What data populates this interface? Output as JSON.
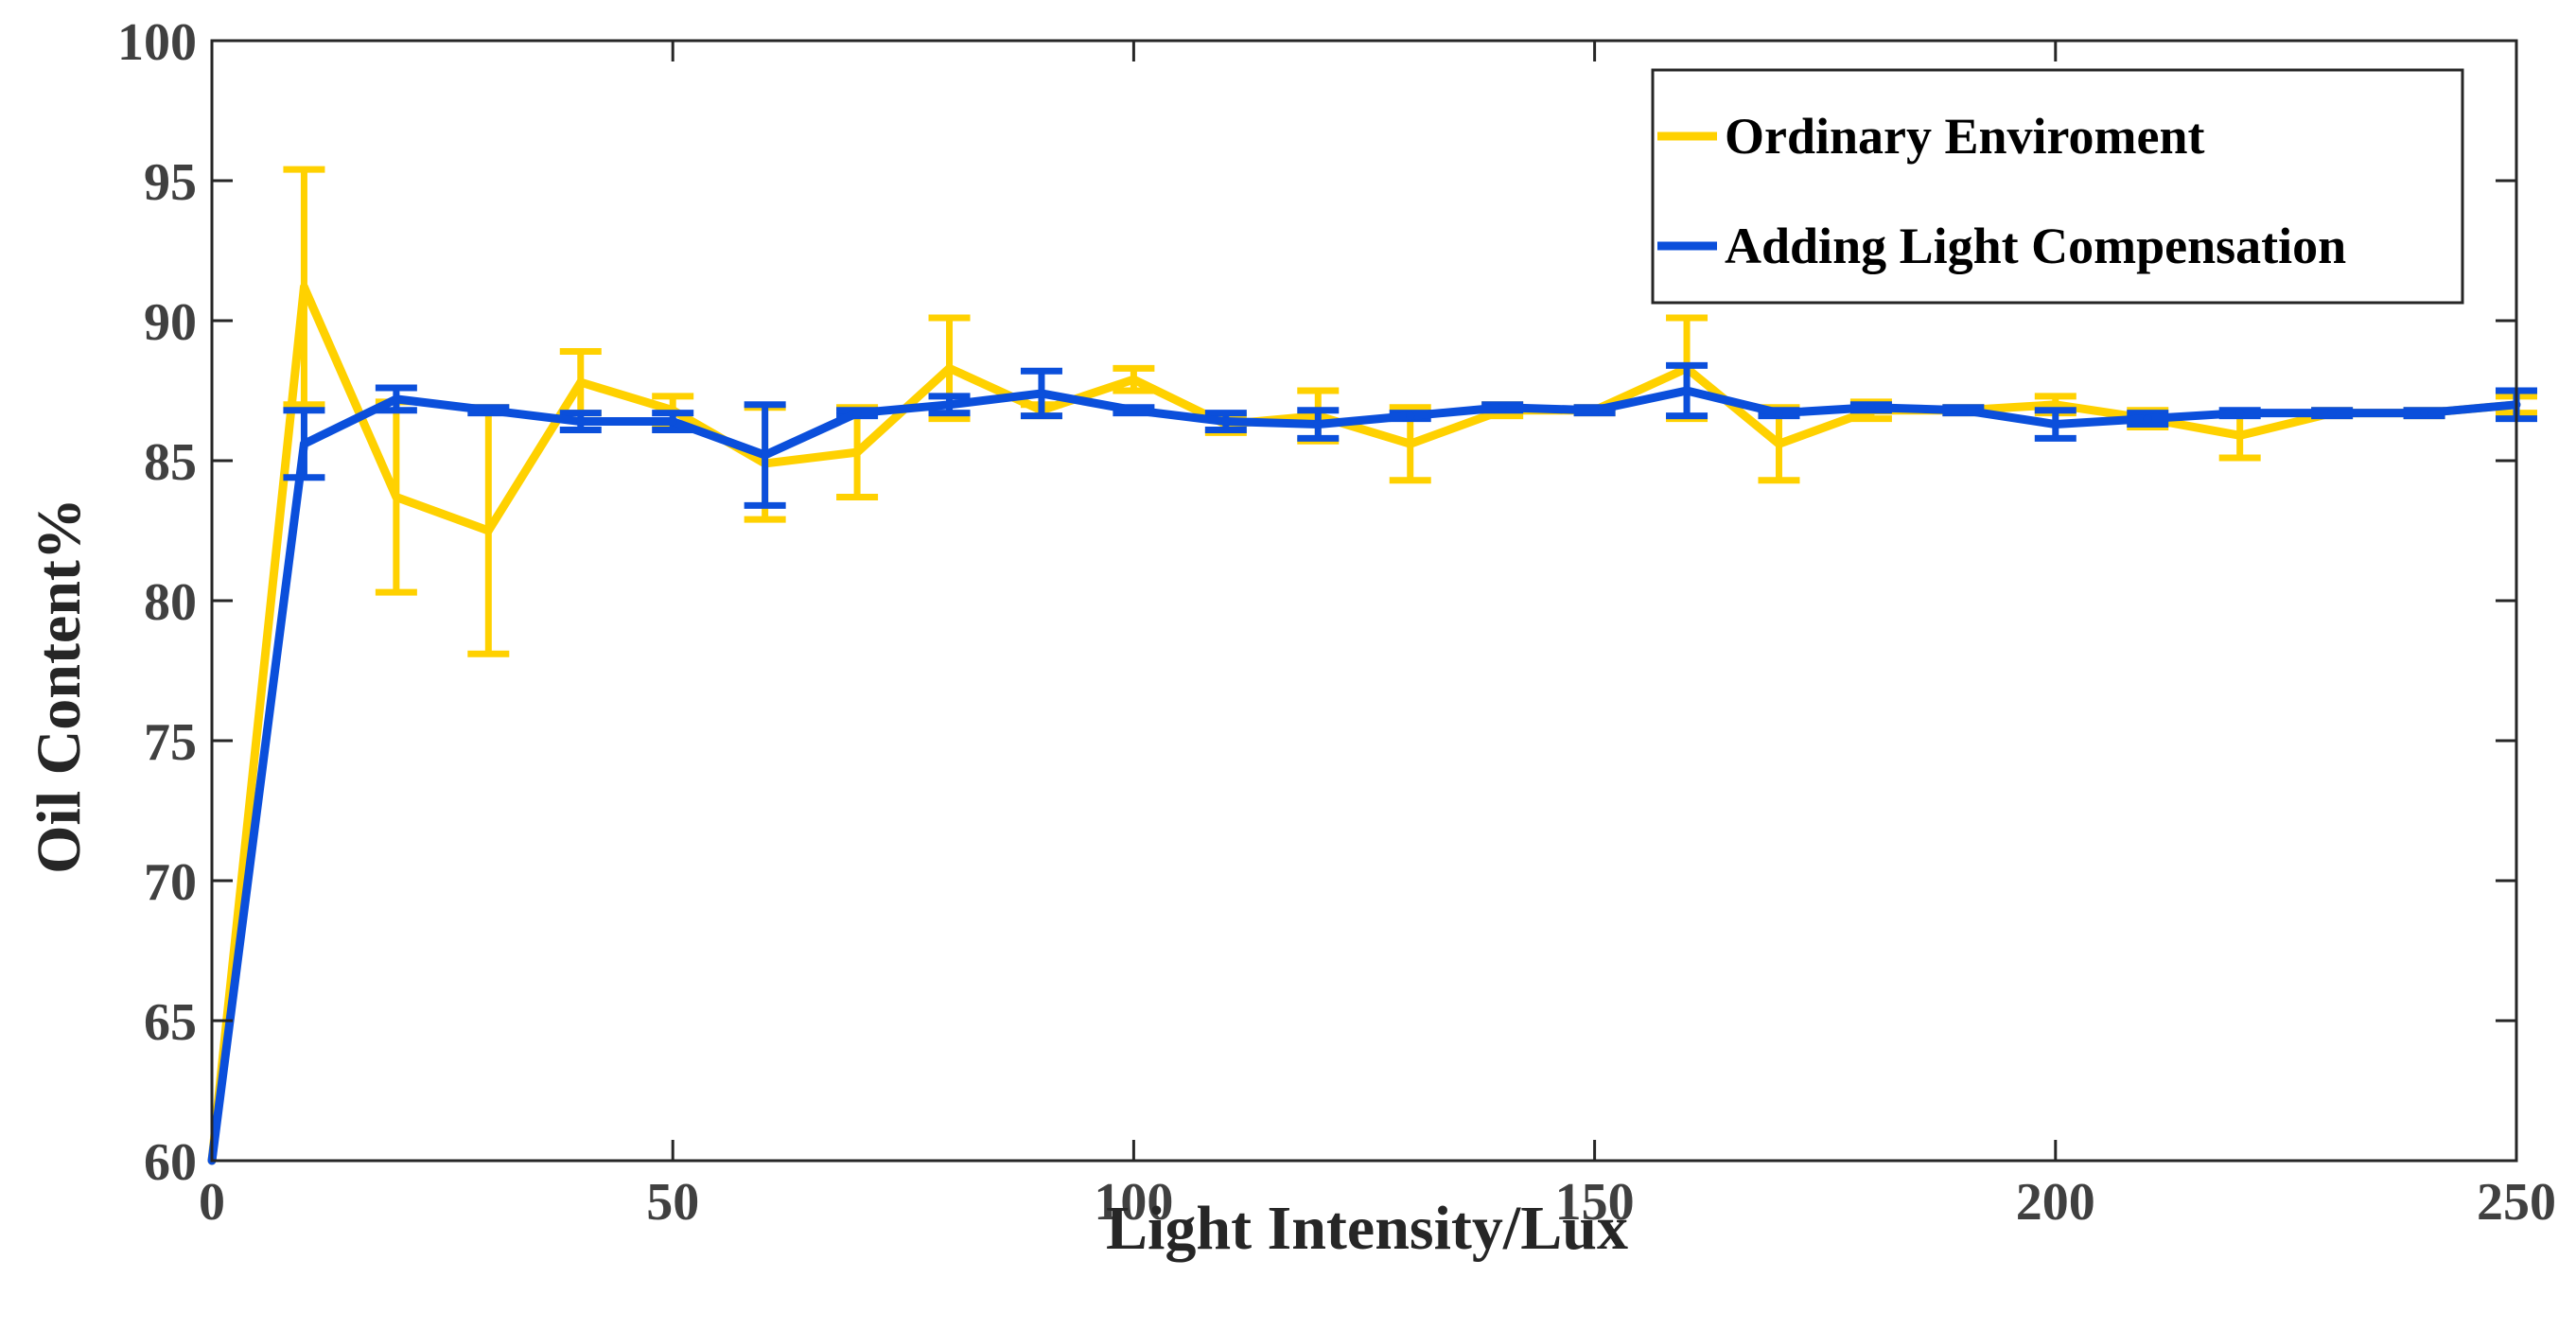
{
  "chart_data": {
    "type": "line",
    "title": "",
    "xlabel": "Light Intensity/Lux",
    "ylabel": "Oil Content%",
    "xlim": [
      0,
      250
    ],
    "ylim": [
      60,
      100
    ],
    "xticks": [
      0,
      50,
      100,
      150,
      200,
      250
    ],
    "yticks": [
      60,
      65,
      70,
      75,
      80,
      85,
      90,
      95,
      100
    ],
    "grid": false,
    "legend_position": "top-right",
    "x": [
      0,
      10,
      20,
      30,
      40,
      50,
      60,
      70,
      80,
      90,
      100,
      110,
      120,
      130,
      140,
      150,
      160,
      170,
      180,
      190,
      200,
      210,
      220,
      230,
      240,
      250
    ],
    "series": [
      {
        "name": "Ordinary Enviroment",
        "color": "#FFD100",
        "values": [
          60,
          91.2,
          83.7,
          82.5,
          87.8,
          86.8,
          84.9,
          85.3,
          88.3,
          86.8,
          87.9,
          86.3,
          86.6,
          85.6,
          86.8,
          86.8,
          88.3,
          85.6,
          86.8,
          86.8,
          87.0,
          86.5,
          85.9,
          86.7,
          86.7,
          87.0
        ],
        "errors": [
          0,
          4.2,
          3.4,
          4.4,
          1.1,
          0.5,
          2.0,
          1.6,
          1.8,
          0.2,
          0.4,
          0.3,
          0.9,
          1.3,
          0.2,
          0.1,
          1.8,
          1.3,
          0.3,
          0.1,
          0.3,
          0.3,
          0.8,
          0.1,
          0.1,
          0.3
        ]
      },
      {
        "name": "Adding Light Compensation",
        "color": "#0B4FDB",
        "values": [
          60,
          85.6,
          87.2,
          86.8,
          86.4,
          86.4,
          85.2,
          86.7,
          87.0,
          87.4,
          86.8,
          86.4,
          86.3,
          86.6,
          86.9,
          86.8,
          87.5,
          86.7,
          86.9,
          86.8,
          86.3,
          86.5,
          86.7,
          86.7,
          86.7,
          87.0
        ],
        "errors": [
          0,
          1.2,
          0.4,
          0.1,
          0.3,
          0.3,
          1.8,
          0.1,
          0.3,
          0.8,
          0.1,
          0.3,
          0.5,
          0.1,
          0.1,
          0.1,
          0.9,
          0.1,
          0.1,
          0.1,
          0.5,
          0.2,
          0.1,
          0.1,
          0.1,
          0.5
        ]
      }
    ]
  }
}
